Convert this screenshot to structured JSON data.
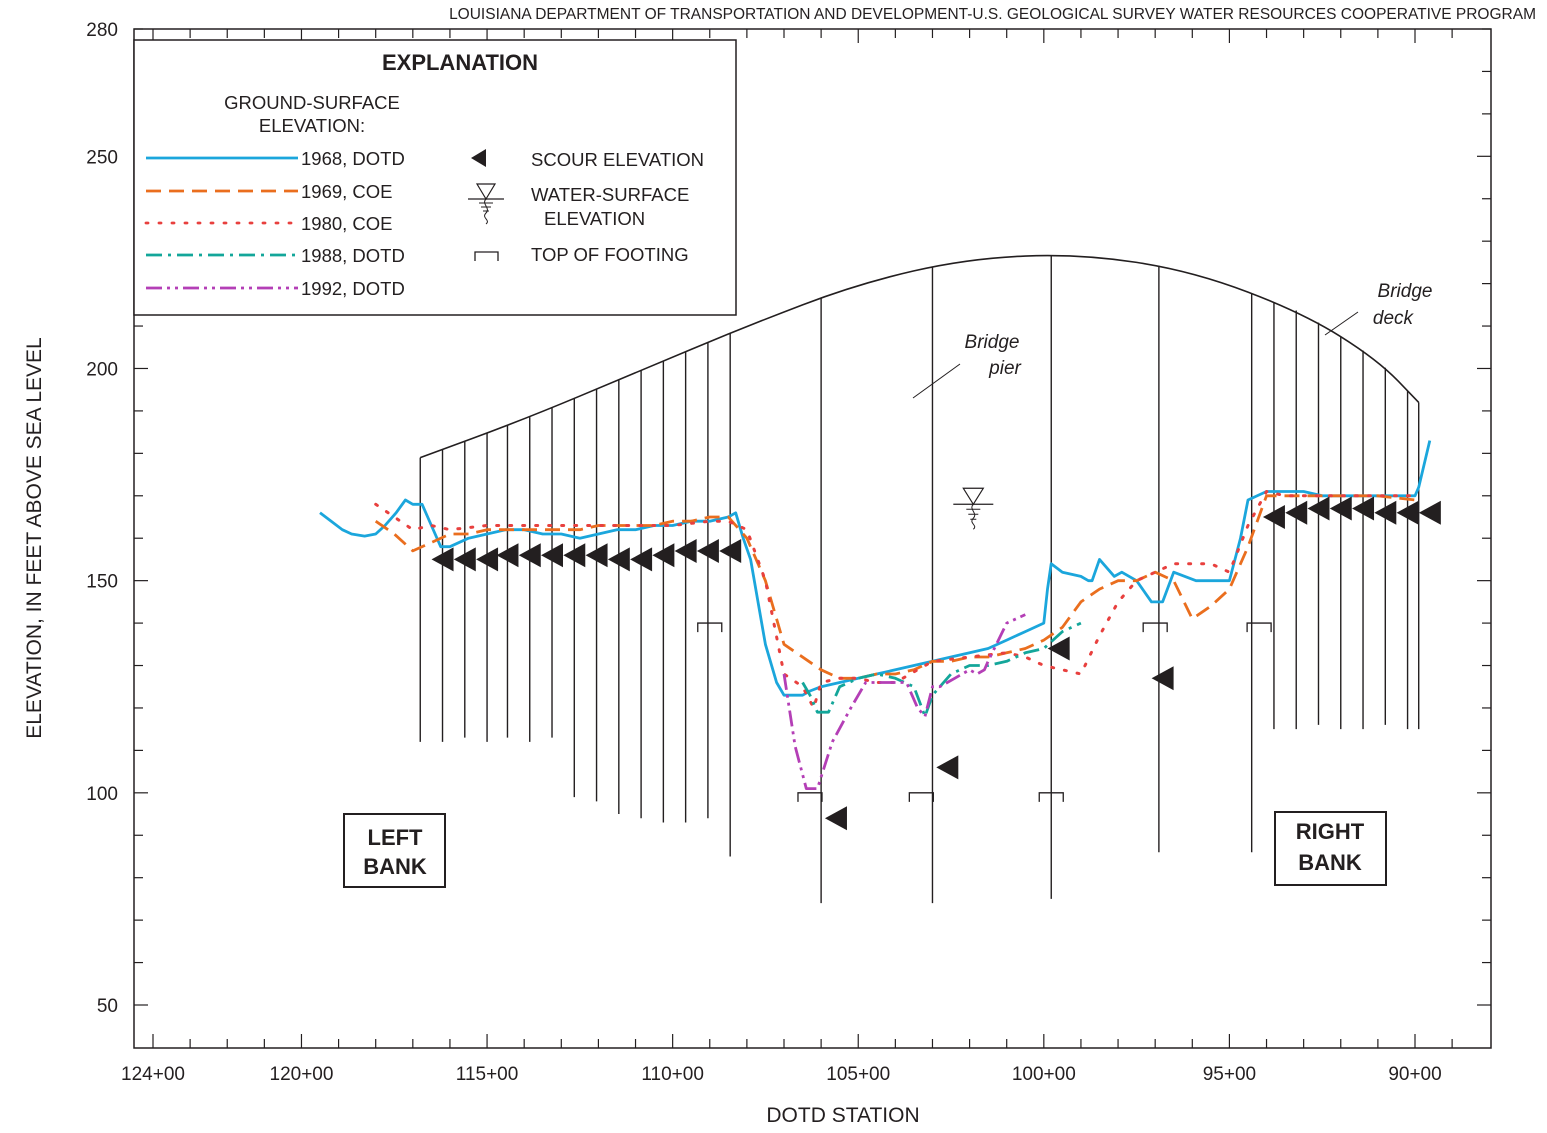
{
  "header": "LOUISIANA DEPARTMENT OF TRANSPORTATION AND DEVELOPMENT-U.S. GEOLOGICAL SURVEY WATER RESOURCES COOPERATIVE PROGRAM",
  "legend": {
    "title": "EXPLANATION",
    "ground_surface_heading": [
      "GROUND-SURFACE",
      "ELEVATION:"
    ],
    "series_labels": [
      "1968, DOTD",
      "1969, COE",
      "1980, COE",
      "1988, DOTD",
      "1992, DOTD"
    ],
    "scour_label": "SCOUR ELEVATION",
    "water_surface_label": [
      "WATER-SURFACE",
      "ELEVATION"
    ],
    "footing_label": "TOP OF FOOTING"
  },
  "banks": {
    "left": [
      "LEFT",
      "BANK"
    ],
    "right": [
      "RIGHT",
      "BANK"
    ]
  },
  "annotations": {
    "bridge_pier": [
      "Bridge",
      "pier"
    ],
    "bridge_deck": [
      "Bridge",
      "deck"
    ]
  },
  "colors": {
    "1968": "#1ba6dc",
    "1969": "#ea6e1e",
    "1980": "#e8403e",
    "1988": "#13a69a",
    "1992": "#b43fb6",
    "ink": "#231f20"
  },
  "chart_data": {
    "type": "line",
    "xlabel": "DOTD STATION",
    "ylabel": "ELEVATION, IN FEET ABOVE SEA LEVEL",
    "x_unit": "feet (station 100+00 = 10000)",
    "x_reversed": true,
    "xlim": [
      12500,
      8850
    ],
    "ylim": [
      40,
      280
    ],
    "x_ticks": [
      12400,
      12000,
      11500,
      11000,
      10500,
      10000,
      9500,
      9000
    ],
    "x_tick_labels": [
      "124+00",
      "120+00",
      "115+00",
      "110+00",
      "105+00",
      "100+00",
      "95+00",
      "90+00"
    ],
    "y_ticks": [
      50,
      100,
      150,
      200,
      250,
      280
    ],
    "y_tick_labels": [
      "50",
      "100",
      "150",
      "200",
      "250",
      "280"
    ],
    "series": [
      {
        "name": "1968, DOTD",
        "style": "solid",
        "x": [
          11950,
          11920,
          11890,
          11865,
          11830,
          11800,
          11775,
          11745,
          11720,
          11700,
          11675,
          11650,
          11625,
          11600,
          11550,
          11500,
          11450,
          11400,
          11350,
          11300,
          11250,
          11200,
          11150,
          11100,
          11050,
          11000,
          10950,
          10900,
          10850,
          10830,
          10810,
          10790,
          10770,
          10750,
          10720,
          10700,
          10680,
          10650,
          10630,
          10600,
          10550,
          10500,
          10450,
          10400,
          10350,
          10300,
          10250,
          10200,
          10150,
          10100,
          10050,
          10000,
          9990,
          9980,
          9950,
          9900,
          9880,
          9870,
          9850,
          9830,
          9810,
          9790,
          9750,
          9710,
          9700,
          9680,
          9650,
          9590,
          9560,
          9500,
          9470,
          9450,
          9400,
          9350,
          9300,
          9250,
          9200,
          9150,
          9100,
          9050,
          9000,
          8990,
          8960
        ],
        "y": [
          166,
          164,
          162,
          161,
          160.5,
          161,
          163,
          166,
          169,
          168,
          168,
          163,
          158,
          158,
          160,
          161,
          162,
          162,
          161,
          161,
          160,
          161,
          162,
          162,
          163,
          163,
          164,
          164,
          165,
          166,
          160,
          155,
          145,
          135,
          126,
          123,
          123,
          123,
          124,
          125,
          126,
          127,
          128,
          129,
          130,
          131,
          132,
          133,
          134,
          136,
          138,
          140,
          148,
          154,
          152,
          151,
          150,
          150,
          155,
          153,
          151,
          152,
          150,
          145,
          145,
          145,
          152,
          150,
          150,
          150,
          160,
          169,
          171,
          171,
          171,
          170,
          170,
          170,
          170,
          170,
          170,
          172,
          183
        ]
      },
      {
        "name": "1969, COE",
        "style": "dashed",
        "x": [
          11800,
          11750,
          11700,
          11650,
          11600,
          11550,
          11500,
          11450,
          11400,
          11350,
          11300,
          11250,
          11200,
          11150,
          11100,
          11050,
          11000,
          10950,
          10900,
          10850,
          10800,
          10750,
          10700,
          10600,
          10550,
          10500,
          10450,
          10400,
          10350,
          10300,
          10250,
          10200,
          10150,
          10100,
          10050,
          10000,
          9950,
          9900,
          9850,
          9800,
          9750,
          9700,
          9650,
          9600,
          9550,
          9500,
          9450,
          9400,
          9350,
          9300,
          9200,
          9100,
          9000
        ],
        "y": [
          164,
          161,
          157,
          159,
          161,
          161,
          162,
          162,
          162,
          162,
          162,
          162,
          163,
          163,
          163,
          163,
          164,
          164,
          165,
          165,
          160,
          150,
          135,
          129,
          127,
          127,
          128,
          128,
          129,
          131,
          131,
          132,
          132,
          133,
          134,
          136,
          139,
          145,
          148,
          150,
          150,
          152,
          150,
          141,
          144,
          148,
          158,
          170,
          170,
          170,
          170,
          170,
          169
        ]
      },
      {
        "name": "1980, COE",
        "style": "dotted",
        "x": [
          11800,
          11750,
          11700,
          11650,
          11600,
          11500,
          11400,
          11300,
          11200,
          11100,
          11000,
          10900,
          10850,
          10800,
          10750,
          10700,
          10650,
          10620,
          10600,
          10550,
          10500,
          10450,
          10400,
          10300,
          10200,
          10100,
          10050,
          10000,
          9950,
          9900,
          9850,
          9800,
          9750,
          9700,
          9650,
          9600,
          9550,
          9500,
          9450,
          9400,
          9350,
          9300,
          9200,
          9100,
          9000
        ],
        "y": [
          168,
          165,
          162,
          163,
          162,
          163,
          163,
          163,
          163,
          163,
          163,
          164,
          164,
          162,
          150,
          128,
          125,
          120,
          126,
          127,
          127,
          126,
          126,
          131,
          132,
          133,
          132,
          130,
          129,
          128,
          137,
          145,
          150,
          152,
          154,
          154,
          154,
          152,
          163,
          171,
          170,
          170,
          170,
          170,
          170
        ]
      },
      {
        "name": "1988, DOTD",
        "style": "dashdot",
        "x": [
          10650,
          10630,
          10610,
          10580,
          10550,
          10500,
          10450,
          10400,
          10350,
          10320,
          10300,
          10280,
          10250,
          10200,
          10150,
          10100,
          10050,
          10000,
          9950,
          9900
        ],
        "y": [
          126,
          123,
          119,
          119,
          125,
          127,
          128,
          127,
          125,
          118,
          123,
          125,
          128,
          130,
          130,
          131,
          133,
          134,
          138,
          140
        ]
      },
      {
        "name": "1992, DOTD",
        "style": "dashdotdot",
        "x": [
          10700,
          10670,
          10640,
          10610,
          10570,
          10520,
          10480,
          10440,
          10400,
          10370,
          10340,
          10320,
          10300,
          10280,
          10240,
          10200,
          10180,
          10160,
          10150,
          10100,
          10050
        ],
        "y": [
          128,
          111,
          101,
          101,
          112,
          120,
          126,
          126,
          126,
          126,
          120,
          118,
          125,
          125,
          127,
          129,
          128,
          129,
          131,
          140,
          142
        ]
      }
    ],
    "scour_elevations": [
      {
        "x": 11620,
        "y": 155
      },
      {
        "x": 11560,
        "y": 155
      },
      {
        "x": 11500,
        "y": 155
      },
      {
        "x": 11445,
        "y": 156
      },
      {
        "x": 11385,
        "y": 156
      },
      {
        "x": 11325,
        "y": 156
      },
      {
        "x": 11265,
        "y": 156
      },
      {
        "x": 11205,
        "y": 156
      },
      {
        "x": 11145,
        "y": 155
      },
      {
        "x": 11085,
        "y": 155
      },
      {
        "x": 11025,
        "y": 156
      },
      {
        "x": 10965,
        "y": 157
      },
      {
        "x": 10905,
        "y": 157
      },
      {
        "x": 10845,
        "y": 157
      },
      {
        "x": 10560,
        "y": 94
      },
      {
        "x": 10260,
        "y": 106
      },
      {
        "x": 9960,
        "y": 134
      },
      {
        "x": 9680,
        "y": 127
      },
      {
        "x": 9380,
        "y": 165
      },
      {
        "x": 9320,
        "y": 166
      },
      {
        "x": 9260,
        "y": 167
      },
      {
        "x": 9200,
        "y": 167
      },
      {
        "x": 9140,
        "y": 167
      },
      {
        "x": 9080,
        "y": 166
      },
      {
        "x": 9020,
        "y": 166
      },
      {
        "x": 8960,
        "y": 166
      }
    ],
    "water_surface_elevations": [
      {
        "x": 10190,
        "y": 168
      }
    ],
    "top_of_footing": [
      {
        "x": 10900,
        "y": 140
      },
      {
        "x": 10630,
        "y": 100
      },
      {
        "x": 10330,
        "y": 100
      },
      {
        "x": 9980,
        "y": 100
      },
      {
        "x": 9700,
        "y": 140
      },
      {
        "x": 9420,
        "y": 140
      }
    ],
    "bridge_deck": [
      {
        "x": 11680,
        "y": 179
      },
      {
        "x": 11400,
        "y": 188
      },
      {
        "x": 11100,
        "y": 199
      },
      {
        "x": 10800,
        "y": 210
      },
      {
        "x": 10500,
        "y": 220
      },
      {
        "x": 10200,
        "y": 226
      },
      {
        "x": 9900,
        "y": 227
      },
      {
        "x": 9600,
        "y": 223
      },
      {
        "x": 9300,
        "y": 213
      },
      {
        "x": 9100,
        "y": 202
      },
      {
        "x": 8990,
        "y": 192
      }
    ],
    "piles": [
      {
        "x": 11680,
        "bottom": 112
      },
      {
        "x": 11620,
        "bottom": 112
      },
      {
        "x": 11560,
        "bottom": 113
      },
      {
        "x": 11500,
        "bottom": 112
      },
      {
        "x": 11445,
        "bottom": 113
      },
      {
        "x": 11385,
        "bottom": 112
      },
      {
        "x": 11325,
        "bottom": 113
      },
      {
        "x": 11265,
        "bottom": 99
      },
      {
        "x": 11205,
        "bottom": 98
      },
      {
        "x": 11145,
        "bottom": 95
      },
      {
        "x": 11085,
        "bottom": 94
      },
      {
        "x": 11025,
        "bottom": 93
      },
      {
        "x": 10965,
        "bottom": 93
      },
      {
        "x": 10905,
        "bottom": 94
      },
      {
        "x": 10845,
        "bottom": 85
      },
      {
        "x": 10600,
        "bottom": 74
      },
      {
        "x": 10300,
        "bottom": 74
      },
      {
        "x": 9980,
        "bottom": 75
      },
      {
        "x": 9690,
        "bottom": 86
      },
      {
        "x": 9440,
        "bottom": 86
      },
      {
        "x": 9380,
        "bottom": 115
      },
      {
        "x": 9320,
        "bottom": 115
      },
      {
        "x": 9260,
        "bottom": 116
      },
      {
        "x": 9200,
        "bottom": 115
      },
      {
        "x": 9140,
        "bottom": 115
      },
      {
        "x": 9080,
        "bottom": 116
      },
      {
        "x": 9020,
        "bottom": 115
      },
      {
        "x": 8990,
        "bottom": 115
      }
    ]
  }
}
